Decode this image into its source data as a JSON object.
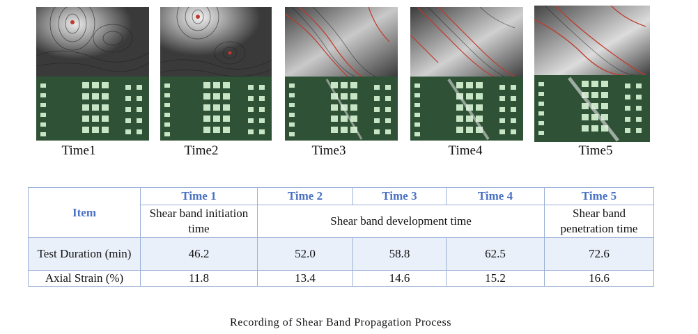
{
  "panels": [
    {
      "label": "Time1"
    },
    {
      "label": "Time2"
    },
    {
      "label": "Time3"
    },
    {
      "label": "Time4"
    },
    {
      "label": "Time5"
    }
  ],
  "table": {
    "item_header": "Item",
    "time_headers": [
      "Time 1",
      "Time 2",
      "Time 3",
      "Time 4",
      "Time 5"
    ],
    "phase_labels": {
      "initiation": "Shear band initiation time",
      "development": "Shear band development time",
      "penetration": "Shear band penetration time"
    },
    "rows": [
      {
        "label": "Test Duration (min)",
        "values": [
          "46.2",
          "52.0",
          "58.8",
          "62.5",
          "72.6"
        ]
      },
      {
        "label": "Axial Strain (%)",
        "values": [
          "11.8",
          "13.4",
          "14.6",
          "15.2",
          "16.6"
        ]
      }
    ]
  },
  "caption": "Recording of Shear Band Propagation Process",
  "colors": {
    "header_text": "#4a71c4",
    "border": "#9ab0d6",
    "row_highlight": "#eaf0fa",
    "contour_dark": "#3c3c3c",
    "contour_red": "#c0392b",
    "specimen_green": "#2f5236"
  }
}
